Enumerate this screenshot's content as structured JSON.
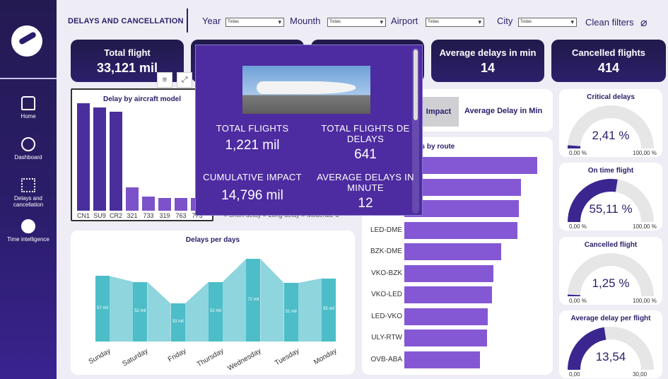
{
  "sidebar": {
    "items": [
      {
        "label": "Home",
        "icon": "home-icon"
      },
      {
        "label": "Dashboard",
        "icon": "pie-icon"
      },
      {
        "label": "Delays and cancellation",
        "icon": "flow-icon"
      },
      {
        "label": "Time intelligence",
        "icon": "clock-icon"
      }
    ]
  },
  "header": {
    "title": "DELAYS AND CANCELLATION",
    "filters": [
      {
        "label": "Year",
        "value": "Todas"
      },
      {
        "label": "Mounth",
        "value": "Todas"
      },
      {
        "label": "Airport",
        "value": "Todas"
      },
      {
        "label": "City",
        "value": "Todas"
      }
    ],
    "clean_filters": "Clean filters"
  },
  "kpis": [
    {
      "label": "Total flight",
      "value": "33,121 mil"
    },
    {
      "label": "",
      "value": ""
    },
    {
      "label": "",
      "value": ""
    },
    {
      "label": "Average delays in min",
      "value": "14"
    },
    {
      "label": "Cancelled flights",
      "value": "414"
    }
  ],
  "aircraft_chart": {
    "title": "Delay by aircraft model",
    "chart_data": {
      "type": "bar",
      "categories": [
        "CN1",
        "SU9",
        "CR2",
        "321",
        "733",
        "319",
        "763",
        "773"
      ],
      "values": [
        100,
        96,
        92,
        22,
        13,
        12,
        12,
        12
      ]
    }
  },
  "legend_partial": "= Short delay = Long delay = Moderate d",
  "tabs": {
    "active": "Impact",
    "other": "Average Delay in Min"
  },
  "route_chart": {
    "title": "TOP 10 Delays by route",
    "chart_data": {
      "type": "bar",
      "categories": [
        "",
        "",
        "",
        "LED-DME",
        "BZK-DME",
        "VKO-BZK",
        "VKO-LED",
        "LED-VKO",
        "ULY-RTW",
        "OVB-ABA"
      ],
      "values": [
        100,
        88,
        86,
        85,
        73,
        67,
        66,
        63,
        62,
        57
      ]
    }
  },
  "days_chart": {
    "title": "Delays per days",
    "chart_data": {
      "type": "area",
      "categories": [
        "Sunday",
        "Saturday",
        "Friday",
        "Thursday",
        "Wednesday",
        "Tuesday",
        "Monday"
      ],
      "values": [
        57,
        52,
        33,
        52,
        72,
        51,
        55
      ],
      "value_labels": [
        "57 mil",
        "52 mil",
        "33 mil",
        "52 mil",
        "72 mil",
        "51 mil",
        "55 mil"
      ]
    }
  },
  "gauges": [
    {
      "title": "Critical delays",
      "value": "2,41 %",
      "min": "0,00 %",
      "max": "100,00 %",
      "fraction": 0.024
    },
    {
      "title": "On time flight",
      "value": "55,11 %",
      "min": "0,00 %",
      "max": "100,00 %",
      "fraction": 0.551
    },
    {
      "title": "Cancelled flight",
      "value": "1,25 %",
      "min": "0,00 %",
      "max": "100,00 %",
      "fraction": 0.0125
    },
    {
      "title": "Average delay per flight",
      "value": "13,54",
      "min": "0,00",
      "max": "30,00",
      "fraction": 0.451
    }
  ],
  "tooltip": {
    "total_flights_label": "TOTAL FLIGHTS",
    "total_flights_value": "1,221 mil",
    "total_delays_label": "TOTAL FLIGHTS DE DELAYS",
    "total_delays_value": "641",
    "impact_label": "CUMULATIVE IMPACT",
    "impact_value": "14,796 mil",
    "avg_label": "AVERAGE DELAYS IN MINUTE",
    "avg_value": "12"
  },
  "colors": {
    "navy": "#2b1d6a",
    "purple": "#4a2f9c",
    "violet": "#8458d4",
    "teal": "#4dbdc8",
    "teal_light": "#8fd5dd"
  }
}
